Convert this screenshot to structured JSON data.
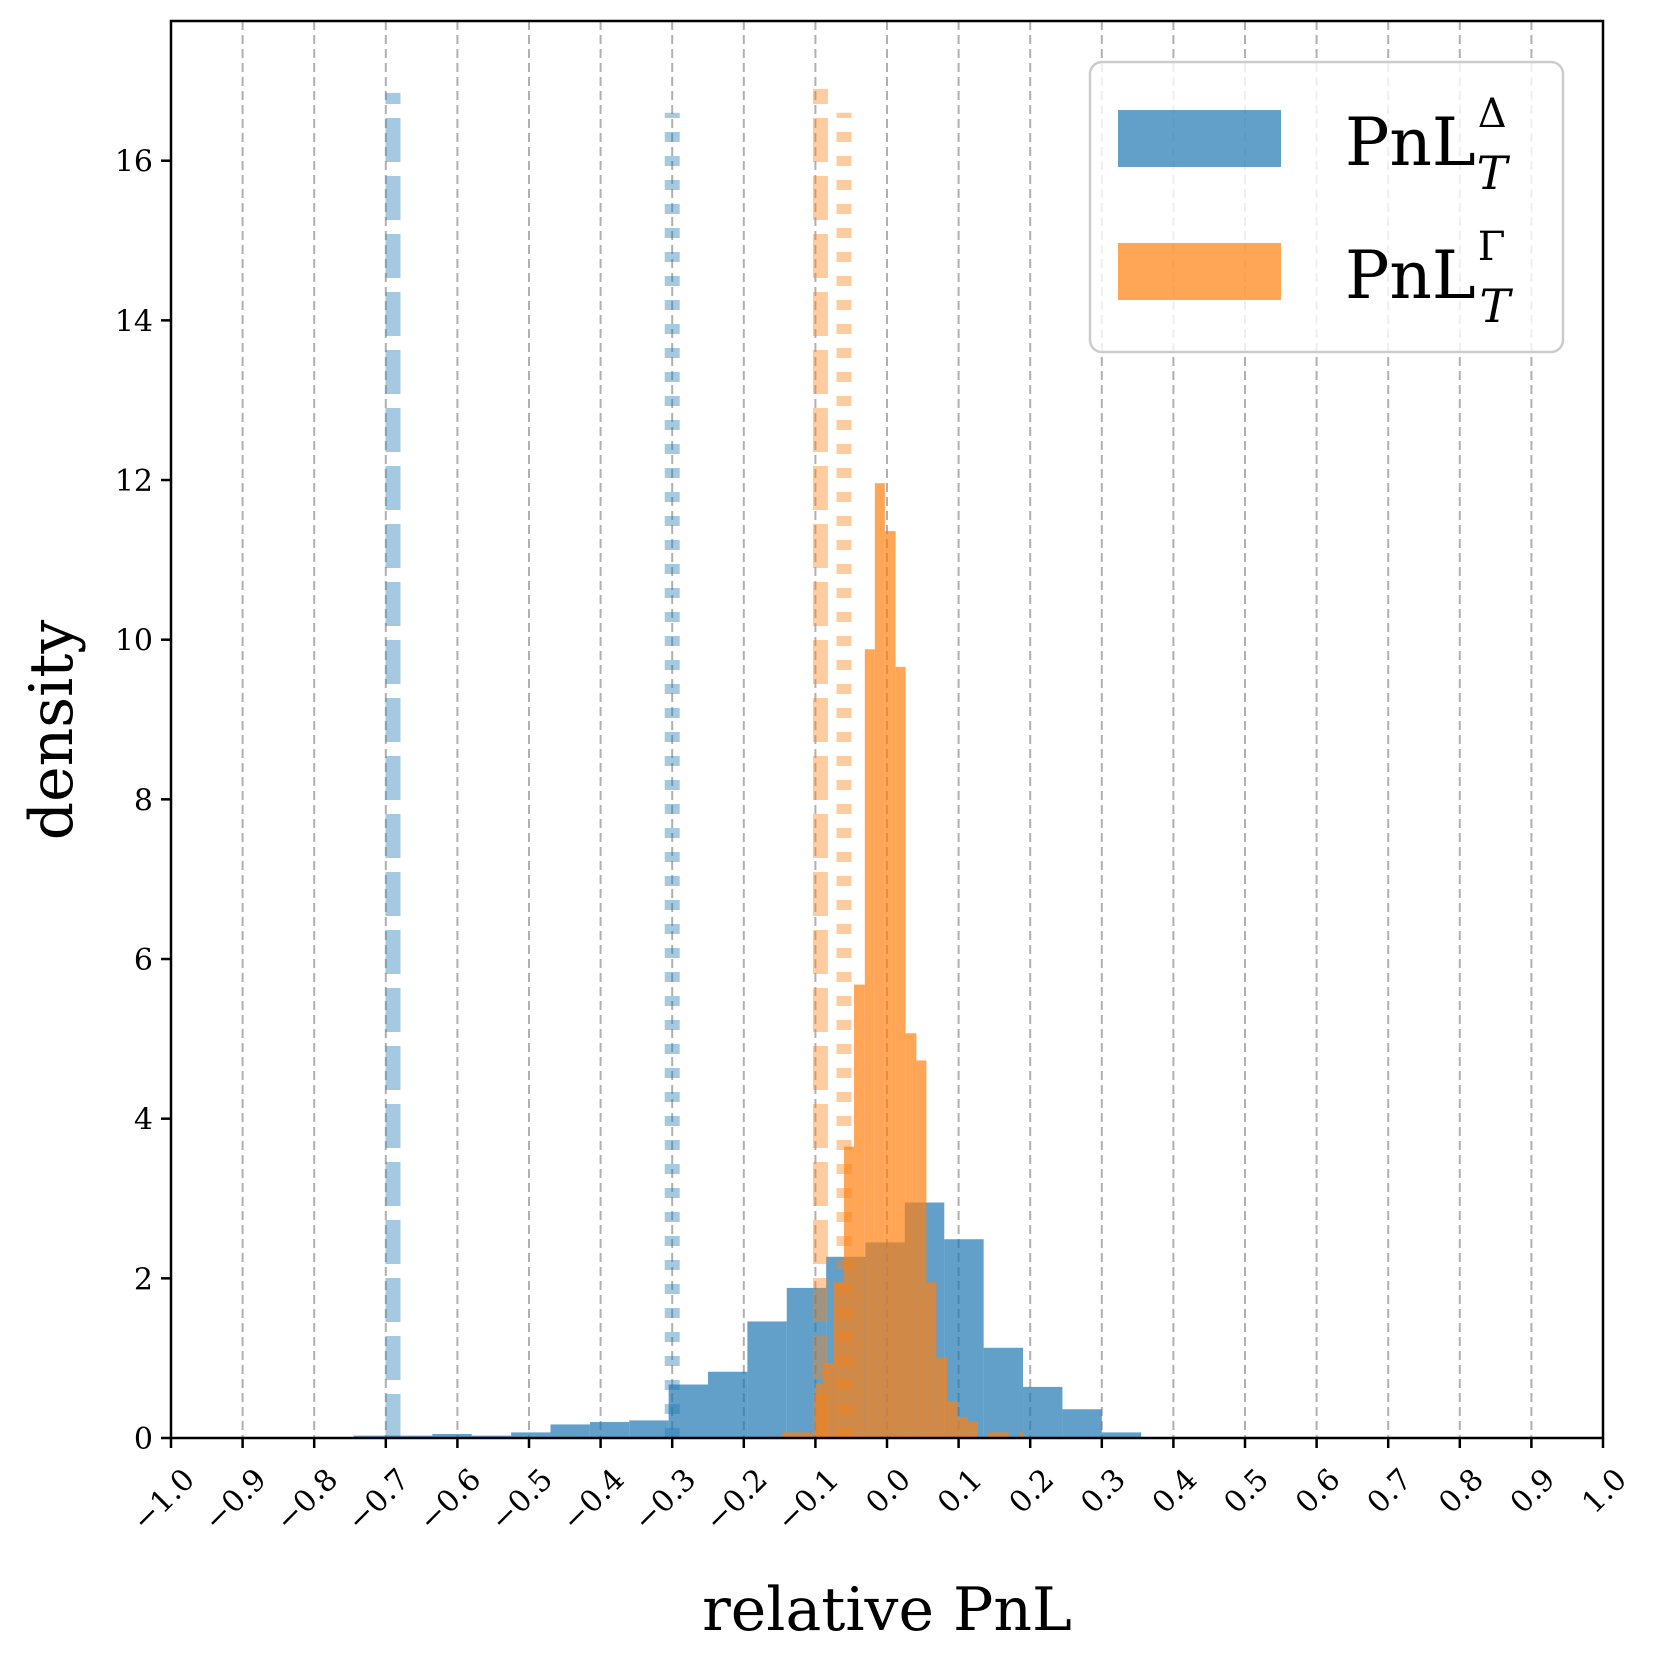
{
  "chart_data": {
    "type": "bar",
    "subtype": "overlaid_histogram",
    "title": "",
    "xlabel": "relative PnL",
    "ylabel": "density",
    "xlim": [
      -1.0,
      1.0
    ],
    "ylim": [
      0,
      17.75
    ],
    "xticks": [
      -1.0,
      -0.9,
      -0.8,
      -0.7,
      -0.6,
      -0.5,
      -0.4,
      -0.3,
      -0.2,
      -0.1,
      0.0,
      0.1,
      0.2,
      0.3,
      0.4,
      0.5,
      0.6,
      0.7,
      0.8,
      0.9,
      1.0
    ],
    "xtick_labels": [
      "−1.0",
      "−0.9",
      "−0.8",
      "−0.7",
      "−0.6",
      "−0.5",
      "−0.4",
      "−0.3",
      "−0.2",
      "−0.1",
      "0.0",
      "0.1",
      "0.2",
      "0.3",
      "0.4",
      "0.5",
      "0.6",
      "0.7",
      "0.8",
      "0.9",
      "1.0"
    ],
    "yticks": [
      0,
      2,
      4,
      6,
      8,
      10,
      12,
      16,
      14
    ],
    "ytick_labels": [
      "0",
      "2",
      "4",
      "6",
      "8",
      "10",
      "12",
      "16",
      "14"
    ],
    "grid": {
      "x": true,
      "y": false,
      "style": "dashed",
      "color": "#b0b0b0"
    },
    "legend": {
      "position": "upper right",
      "entries": [
        {
          "label": "PnL",
          "superscript": "Δ",
          "subscript": "T",
          "color": "#1f77b4"
        },
        {
          "label": "PnL",
          "superscript": "Γ",
          "subscript": "T",
          "color": "#ff7f0e"
        }
      ]
    },
    "series": [
      {
        "name": "PnL_T^Delta",
        "color": "#1f77b4",
        "alpha": 0.7,
        "bin_edges": [
          -0.745,
          -0.69,
          -0.635,
          -0.58,
          -0.525,
          -0.47,
          -0.415,
          -0.36,
          -0.305,
          -0.25,
          -0.195,
          -0.14,
          -0.085,
          -0.03,
          0.025,
          0.08,
          0.135,
          0.19,
          0.245,
          0.3,
          0.355
        ],
        "values": [
          0.03,
          0.03,
          0.05,
          0.03,
          0.07,
          0.17,
          0.2,
          0.22,
          0.67,
          0.83,
          1.46,
          1.88,
          2.27,
          2.45,
          2.95,
          2.49,
          1.13,
          0.64,
          0.36,
          0.07
        ]
      },
      {
        "name": "PnL_T^Gamma",
        "color": "#ff7f0e",
        "alpha": 0.7,
        "bin_edges": [
          -0.147,
          -0.104,
          -0.1,
          -0.089,
          -0.075,
          -0.06,
          -0.046,
          -0.031,
          -0.017,
          -0.003,
          0.012,
          0.026,
          0.041,
          0.055,
          0.069,
          0.084,
          0.098,
          0.113,
          0.127,
          0.141,
          0.17,
          0.185,
          0.19
        ],
        "values": [
          0.07,
          0.0,
          0.68,
          0.94,
          1.95,
          3.65,
          5.68,
          9.88,
          11.96,
          11.36,
          9.66,
          5.07,
          4.73,
          1.95,
          1.0,
          0.46,
          0.26,
          0.2,
          0.0,
          0.07,
          0.0,
          0.07
        ]
      }
    ],
    "vlines": [
      {
        "x": -0.69,
        "color": "#1f77b4",
        "style": "dashed",
        "alpha": 0.4,
        "ymax": 16.85
      },
      {
        "x": -0.3,
        "color": "#1f77b4",
        "style": "dotted",
        "alpha": 0.4,
        "ymax": 16.6
      },
      {
        "x": -0.093,
        "color": "#ff7f0e",
        "style": "dashed",
        "alpha": 0.4,
        "ymax": 16.9
      },
      {
        "x": -0.06,
        "color": "#ff7f0e",
        "style": "dotted",
        "alpha": 0.4,
        "ymax": 16.6
      }
    ]
  },
  "labels": {
    "xlabel": "relative PnL",
    "ylabel": "density",
    "legend_base_1": "PnL",
    "legend_sup_1": "Δ",
    "legend_sub_1": "T",
    "legend_base_2": "PnL",
    "legend_sup_2": "Γ",
    "legend_sub_2": "T"
  }
}
